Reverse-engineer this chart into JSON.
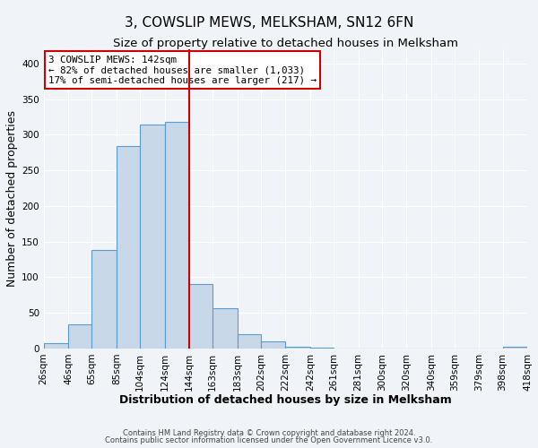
{
  "title": "3, COWSLIP MEWS, MELKSHAM, SN12 6FN",
  "subtitle": "Size of property relative to detached houses in Melksham",
  "xlabel": "Distribution of detached houses by size in Melksham",
  "ylabel": "Number of detached properties",
  "bin_labels": [
    "26sqm",
    "46sqm",
    "65sqm",
    "85sqm",
    "104sqm",
    "124sqm",
    "144sqm",
    "163sqm",
    "183sqm",
    "202sqm",
    "222sqm",
    "242sqm",
    "261sqm",
    "281sqm",
    "300sqm",
    "320sqm",
    "340sqm",
    "359sqm",
    "379sqm",
    "398sqm",
    "418sqm"
  ],
  "bin_edges": [
    26,
    46,
    65,
    85,
    104,
    124,
    144,
    163,
    183,
    202,
    222,
    242,
    261,
    281,
    300,
    320,
    340,
    359,
    379,
    398,
    418
  ],
  "bar_heights": [
    7,
    34,
    138,
    284,
    314,
    318,
    90,
    57,
    20,
    10,
    2,
    1,
    0,
    0,
    0,
    0,
    0,
    0,
    0,
    2
  ],
  "bar_color": "#c8d8e8",
  "bar_edge_color": "#5b9bd5",
  "vline_x": 144,
  "vline_color": "#cc0000",
  "ylim": [
    0,
    420
  ],
  "yticks": [
    0,
    50,
    100,
    150,
    200,
    250,
    300,
    350,
    400
  ],
  "annotation_box_text": "3 COWSLIP MEWS: 142sqm\n← 82% of detached houses are smaller (1,033)\n17% of semi-detached houses are larger (217) →",
  "annotation_box_color": "#cc0000",
  "footer_line1": "Contains HM Land Registry data © Crown copyright and database right 2024.",
  "footer_line2": "Contains public sector information licensed under the Open Government Licence v3.0.",
  "bg_color": "#f0f4f8",
  "grid_color": "#ffffff",
  "title_fontsize": 11,
  "subtitle_fontsize": 9.5,
  "axis_label_fontsize": 9,
  "tick_fontsize": 7.5,
  "annotation_fontsize": 7.8,
  "footer_fontsize": 6.0
}
